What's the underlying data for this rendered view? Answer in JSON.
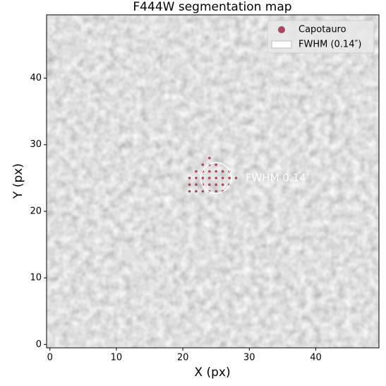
{
  "chart_data": {
    "type": "scatter",
    "title": "F444W segmentation map",
    "x_label": "X (px)",
    "y_label": "Y (px)",
    "xlim": [
      -0.5,
      49.5
    ],
    "ylim": [
      -0.5,
      49.5
    ],
    "xticks": [
      0,
      10,
      20,
      30,
      40
    ],
    "yticks": [
      0,
      10,
      20,
      30,
      40
    ],
    "legend": "upper right",
    "series": [
      {
        "name": "Capotauro",
        "color": "#a8495e",
        "x": [
          24,
          23,
          24,
          25,
          22,
          23,
          24,
          25,
          26,
          27,
          21,
          22,
          23,
          24,
          25,
          26,
          27,
          28,
          21,
          22,
          23,
          24,
          25,
          26,
          27,
          21,
          22,
          23,
          24,
          25,
          26
        ],
        "y": [
          28,
          27,
          27,
          27,
          26,
          26,
          26,
          26,
          26,
          26,
          25,
          25,
          25,
          25,
          25,
          25,
          25,
          25,
          24,
          24,
          24,
          24,
          24,
          24,
          24,
          23,
          23,
          23,
          23,
          23,
          23
        ]
      }
    ],
    "fwhm_circle": {
      "name": "FWHM (0.14″)",
      "color": "#ffffff",
      "center_x": 25,
      "center_y": 25,
      "radius": 2.3,
      "annotation": "FWHM 0.14″"
    }
  }
}
